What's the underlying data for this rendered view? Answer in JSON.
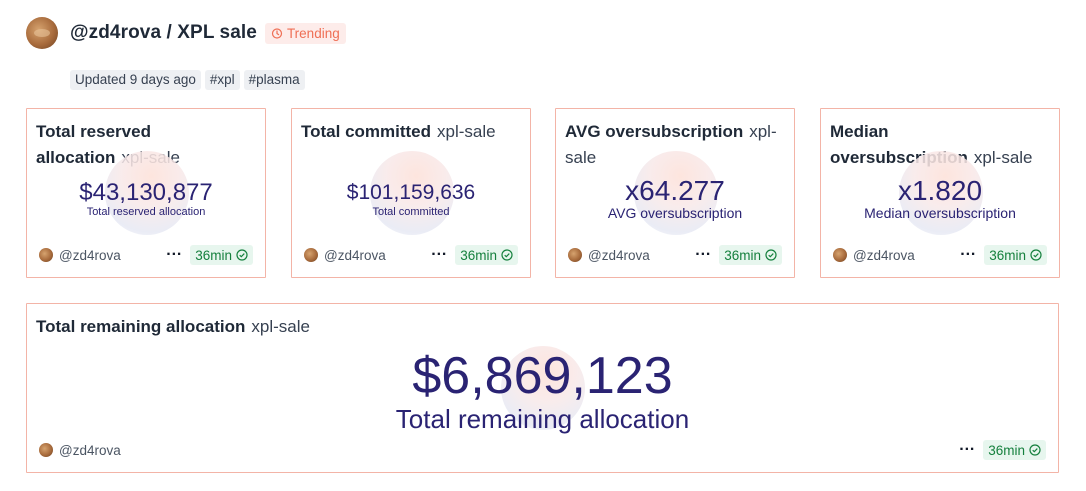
{
  "header": {
    "title": "@zd4rova / XPL sale",
    "trending_label": "Trending"
  },
  "meta": {
    "updated": "Updated 9 days ago",
    "tags": [
      "#xpl",
      "#plasma"
    ]
  },
  "cards": [
    {
      "title": "Total reserved allocation",
      "tag": "xpl-sale",
      "value": "$43,130,877",
      "label": "Total reserved allocation",
      "user": "@zd4rova",
      "time": "36min"
    },
    {
      "title": "Total committed",
      "tag": "xpl-sale",
      "value": "$101,159,636",
      "label": "Total committed",
      "user": "@zd4rova",
      "time": "36min"
    },
    {
      "title": "AVG oversubscription",
      "tag": "xpl-sale",
      "value": "x64.277",
      "label": "AVG oversubscription",
      "user": "@zd4rova",
      "time": "36min"
    },
    {
      "title": "Median oversubscription",
      "tag": "xpl-sale",
      "value": "x1.820",
      "label": "Median oversubscription",
      "user": "@zd4rova",
      "time": "36min"
    }
  ],
  "wide_card": {
    "title": "Total remaining allocation",
    "tag": "xpl-sale",
    "value": "$6,869,123",
    "label": "Total remaining allocation",
    "user": "@zd4rova",
    "time": "36min"
  },
  "colors": {
    "accent_value": "#2a2373",
    "card_border": "#f3b4a7",
    "trending": "#ef6f55",
    "time_green": "#15803d"
  },
  "icons": {
    "trending": "timer-icon",
    "time_check": "check-circle-icon",
    "more": "more-dots-icon"
  }
}
